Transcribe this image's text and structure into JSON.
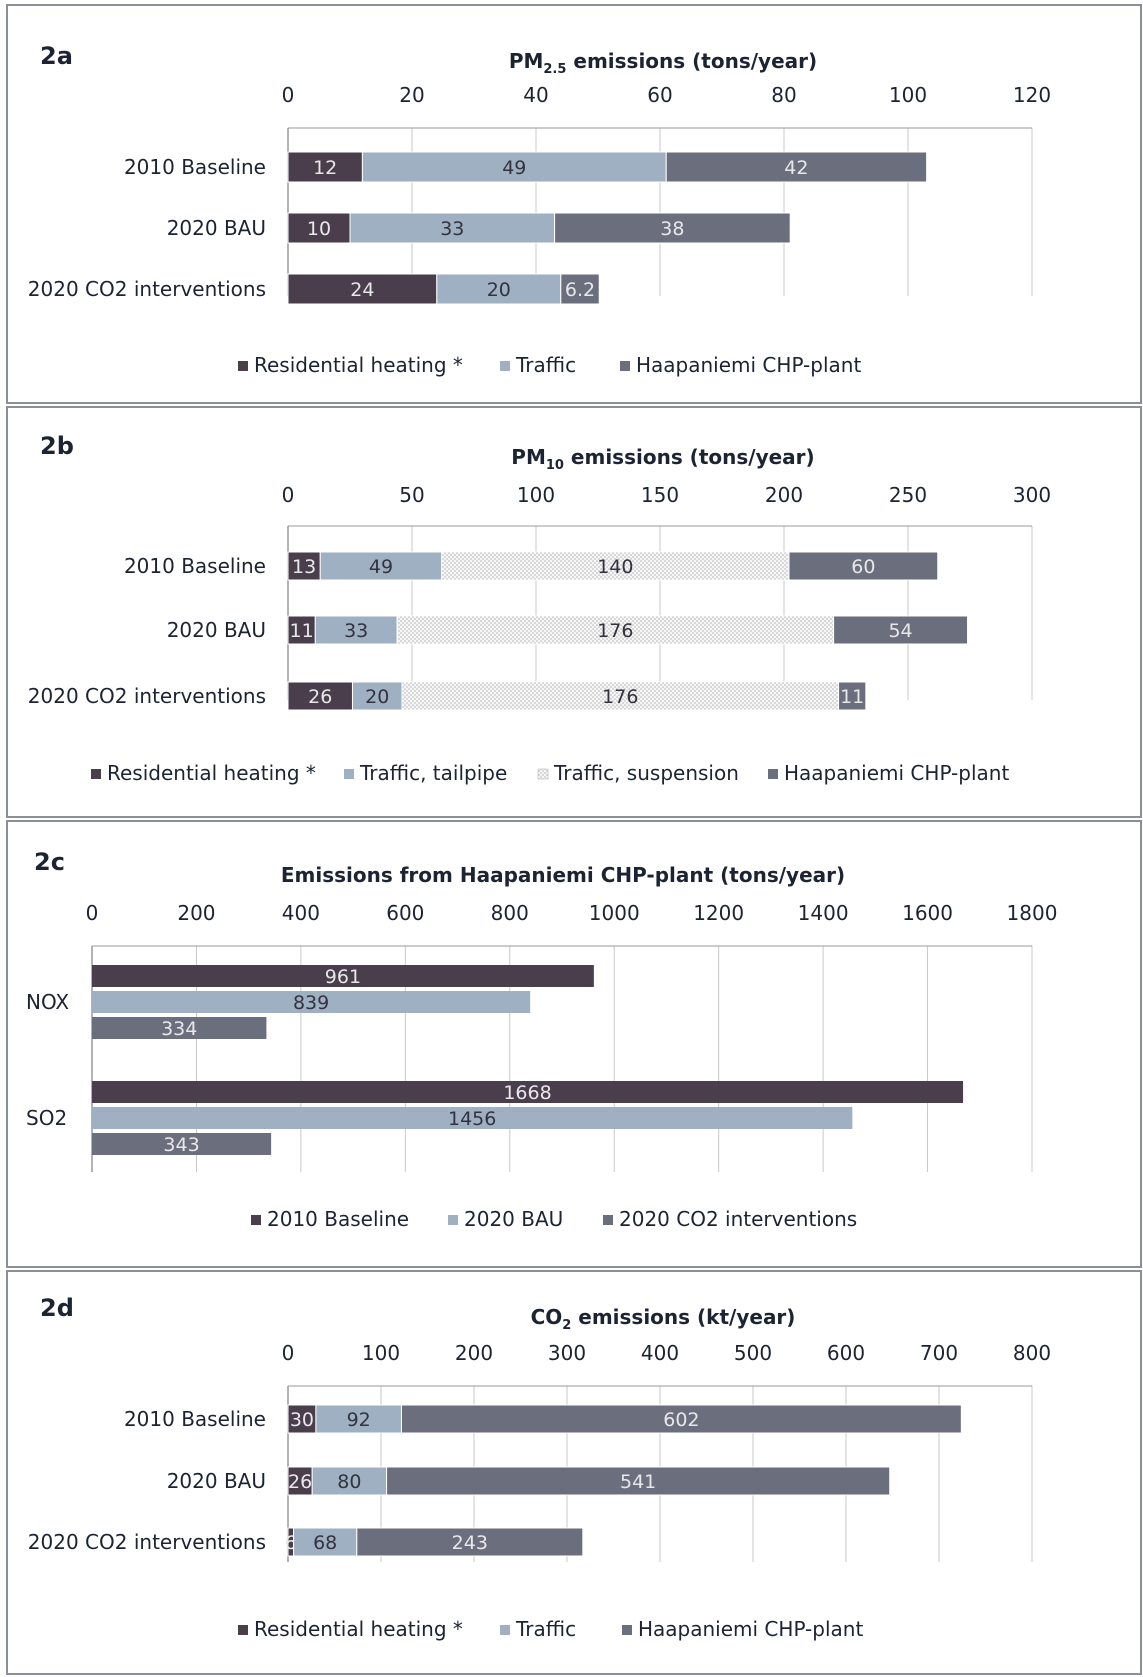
{
  "figure": {
    "title": ""
  },
  "colors": {
    "residential": "#4a3d4c",
    "traffic": "#9eb0c1",
    "suspension": "#ececec",
    "chp": "#6b6f7d",
    "text": "#1c2333",
    "grid": "#c8c8c8",
    "axis": "#9a9a9a"
  },
  "chart_data": [
    {
      "id": "2a",
      "type": "bar",
      "orientation": "horizontal",
      "stacked": true,
      "title": "PM2.5 emissions (tons/year)",
      "title_parts": {
        "main": "PM",
        "sub": "2.5",
        "rest": " emissions (tons/year)"
      },
      "categories": [
        "2010 Baseline",
        "2020 BAU",
        "2020 CO2 interventions"
      ],
      "series": [
        {
          "name": "Residential heating *",
          "values": [
            12,
            10,
            24
          ],
          "labels": [
            "12",
            "10",
            "24"
          ],
          "color_key": "residential"
        },
        {
          "name": "Traffic",
          "values": [
            49,
            33,
            20
          ],
          "labels": [
            "49",
            "33",
            "20"
          ],
          "color_key": "traffic"
        },
        {
          "name": "Haapaniemi CHP-plant",
          "values": [
            42,
            38,
            6.2
          ],
          "labels": [
            "42",
            "38",
            "6.2"
          ],
          "color_key": "chp"
        }
      ],
      "xlim": [
        0,
        120
      ],
      "ticks": [
        0,
        20,
        40,
        60,
        80,
        100,
        120
      ],
      "grid": true,
      "legend_position": "bottom"
    },
    {
      "id": "2b",
      "type": "bar",
      "orientation": "horizontal",
      "stacked": true,
      "title": "PM10 emissions (tons/year)",
      "title_parts": {
        "main": "PM",
        "sub": "10",
        "rest": " emissions (tons/year)"
      },
      "categories": [
        "2010 Baseline",
        "2020 BAU",
        "2020 CO2 interventions"
      ],
      "series": [
        {
          "name": "Residential heating *",
          "values": [
            13,
            11,
            26
          ],
          "labels": [
            "13",
            "11",
            "26"
          ],
          "color_key": "residential"
        },
        {
          "name": "Traffic, tailpipe",
          "values": [
            49,
            33,
            20
          ],
          "labels": [
            "49",
            "33",
            "20"
          ],
          "color_key": "traffic"
        },
        {
          "name": "Traffic, suspension",
          "values": [
            140,
            176,
            176
          ],
          "labels": [
            "140",
            "176",
            "176"
          ],
          "color_key": "suspension"
        },
        {
          "name": "Haapaniemi CHP-plant",
          "values": [
            60,
            54,
            11
          ],
          "labels": [
            "60",
            "54",
            "11"
          ],
          "color_key": "chp"
        }
      ],
      "xlim": [
        0,
        300
      ],
      "ticks": [
        0,
        50,
        100,
        150,
        200,
        250,
        300
      ],
      "grid": true,
      "legend_position": "bottom"
    },
    {
      "id": "2c",
      "type": "bar",
      "orientation": "horizontal",
      "stacked": false,
      "title": "Emissions from Haapaniemi CHP-plant (tons/year)",
      "categories": [
        "NOX",
        "SO2"
      ],
      "series": [
        {
          "name": "2010 Baseline",
          "values": [
            961,
            1668
          ],
          "labels": [
            "961",
            "1668"
          ],
          "color_key": "residential"
        },
        {
          "name": "2020 BAU",
          "values": [
            839,
            1456
          ],
          "labels": [
            "839",
            "1456"
          ],
          "color_key": "traffic"
        },
        {
          "name": "2020 CO2 interventions",
          "values": [
            334,
            343
          ],
          "labels": [
            "334",
            "343"
          ],
          "color_key": "chp"
        }
      ],
      "xlim": [
        0,
        1800
      ],
      "ticks": [
        0,
        200,
        400,
        600,
        800,
        1000,
        1200,
        1400,
        1600,
        1800
      ],
      "grid": true,
      "legend_position": "bottom"
    },
    {
      "id": "2d",
      "type": "bar",
      "orientation": "horizontal",
      "stacked": true,
      "title": "CO2 emissions (kt/year)",
      "title_parts": {
        "main": "CO",
        "sub": "2",
        "rest": " emissions (kt/year)"
      },
      "categories": [
        "2010 Baseline",
        "2020 BAU",
        "2020 CO2 interventions"
      ],
      "series": [
        {
          "name": "Residential heating *",
          "values": [
            30,
            26,
            6
          ],
          "labels": [
            "30",
            "26",
            "6"
          ],
          "color_key": "residential"
        },
        {
          "name": "Traffic",
          "values": [
            92,
            80,
            68
          ],
          "labels": [
            "92",
            "80",
            "68"
          ],
          "color_key": "traffic"
        },
        {
          "name": "Haapaniemi CHP-plant",
          "values": [
            602,
            541,
            243
          ],
          "labels": [
            "602",
            "541",
            "243"
          ],
          "color_key": "chp"
        }
      ],
      "xlim": [
        0,
        800
      ],
      "ticks": [
        0,
        100,
        200,
        300,
        400,
        500,
        600,
        700,
        800
      ],
      "grid": true,
      "legend_position": "bottom"
    }
  ]
}
